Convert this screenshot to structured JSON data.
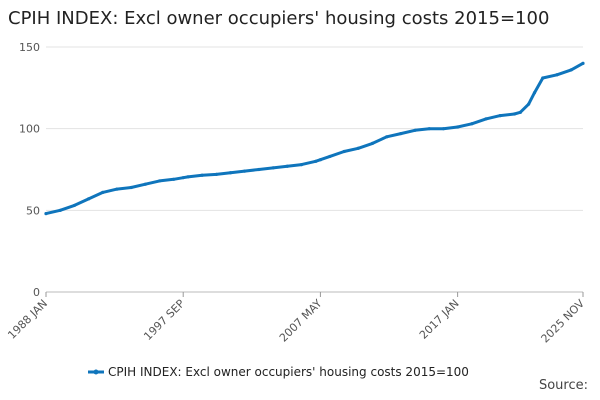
{
  "chart_data": {
    "type": "line",
    "title": "CPIH INDEX: Excl owner occupiers' housing costs 2015=100",
    "source_label": "Source:",
    "xlabel": "",
    "ylabel": "",
    "ylim": [
      0,
      150
    ],
    "y_ticks": [
      0,
      50,
      100,
      150
    ],
    "x_tick_labels": [
      "1988 JAN",
      "1997 SEP",
      "2007 MAY",
      "2017 JAN",
      "2025 NOV"
    ],
    "x_range": [
      "1988 JAN",
      "2025 NOV"
    ],
    "grid": "horizontal",
    "legend_position": "bottom",
    "series": [
      {
        "name": "CPIH INDEX: Excl owner occupiers' housing costs 2015=100",
        "color": "#0f75bc",
        "x": [
          "1988 JAN",
          "1989 JAN",
          "1990 JAN",
          "1991 JAN",
          "1992 JAN",
          "1993 JAN",
          "1994 JAN",
          "1995 JAN",
          "1996 JAN",
          "1997 JAN",
          "1997 SEP",
          "1998 JAN",
          "1999 JAN",
          "2000 JAN",
          "2001 JAN",
          "2002 JAN",
          "2003 JAN",
          "2004 JAN",
          "2005 JAN",
          "2006 JAN",
          "2007 JAN",
          "2007 MAY",
          "2008 JAN",
          "2009 JAN",
          "2010 JAN",
          "2011 JAN",
          "2012 JAN",
          "2013 JAN",
          "2014 JAN",
          "2015 JAN",
          "2016 JAN",
          "2017 JAN",
          "2018 JAN",
          "2019 JAN",
          "2020 JAN",
          "2021 JAN",
          "2021 JUN",
          "2022 JAN",
          "2022 JUN",
          "2023 JAN",
          "2024 JAN",
          "2025 JAN",
          "2025 NOV"
        ],
        "values": [
          48,
          50,
          53,
          57,
          61,
          63,
          64,
          66,
          68,
          69,
          70,
          70.5,
          71.5,
          72,
          73,
          74,
          75,
          76,
          77,
          78,
          80,
          81,
          83,
          86,
          88,
          91,
          95,
          97,
          99,
          100,
          100,
          101,
          103,
          106,
          108,
          109,
          110,
          115,
          122,
          131,
          133,
          136,
          140
        ]
      }
    ]
  }
}
